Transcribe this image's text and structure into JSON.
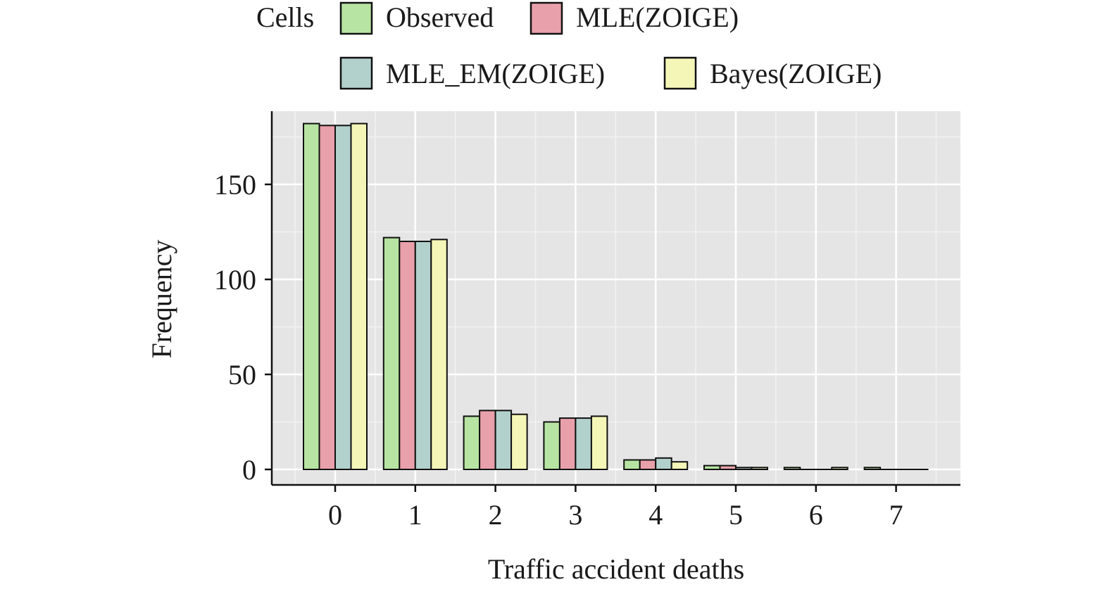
{
  "chart_data": {
    "type": "bar",
    "xlabel": "Traffic accident deaths",
    "ylabel": "Frequency",
    "categories": [
      "0",
      "1",
      "2",
      "3",
      "4",
      "5",
      "6",
      "7"
    ],
    "series": [
      {
        "name": "Observed",
        "color": "#b7e4a2",
        "values": [
          182,
          122,
          28,
          25,
          5,
          2,
          1,
          1
        ]
      },
      {
        "name": "MLE(ZOIGE)",
        "color": "#e8a0aa",
        "values": [
          181,
          120,
          31,
          27,
          5,
          2,
          0,
          0
        ]
      },
      {
        "name": "MLE_EM(ZOIGE)",
        "color": "#b2d1cd",
        "values": [
          181,
          120,
          31,
          27,
          6,
          1,
          0,
          0
        ]
      },
      {
        "name": "Bayes(ZOIGE)",
        "color": "#f4f6b8",
        "values": [
          182,
          121,
          29,
          28,
          4,
          1,
          1,
          0
        ]
      }
    ],
    "yticks": [
      0,
      50,
      100,
      150
    ],
    "ylim": [
      -8,
      190
    ],
    "grid": true,
    "legend": {
      "title": "Cells",
      "position": "top"
    },
    "panel_color": "#e5e5e5"
  }
}
